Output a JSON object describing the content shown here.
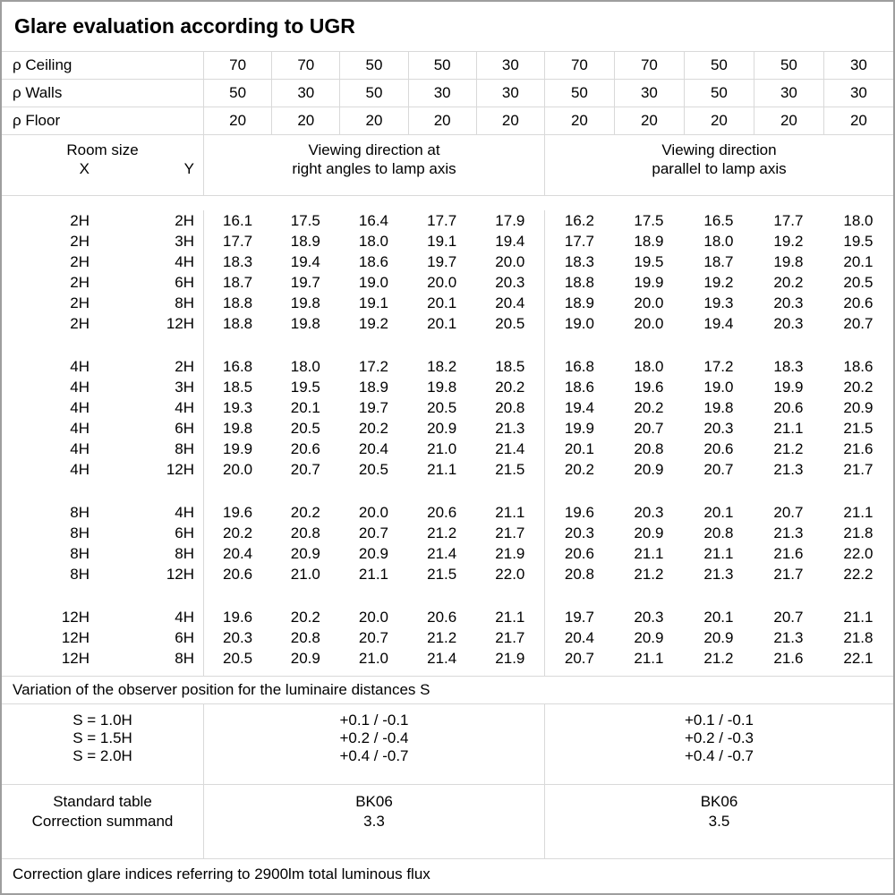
{
  "title": "Glare evaluation according to UGR",
  "colors": {
    "grid_line": "#d9d9d9",
    "outer_border": "#9e9e9e",
    "text": "#000000",
    "background": "#ffffff"
  },
  "reflectance_rows": [
    {
      "label": "ρ Ceiling",
      "values": [
        "70",
        "70",
        "50",
        "50",
        "30",
        "70",
        "70",
        "50",
        "50",
        "30"
      ]
    },
    {
      "label": "ρ Walls",
      "values": [
        "50",
        "30",
        "50",
        "30",
        "30",
        "50",
        "30",
        "50",
        "30",
        "30"
      ]
    },
    {
      "label": "ρ Floor",
      "values": [
        "20",
        "20",
        "20",
        "20",
        "20",
        "20",
        "20",
        "20",
        "20",
        "20"
      ]
    }
  ],
  "room_size_header": {
    "title": "Room size",
    "x": "X",
    "y": "Y"
  },
  "group_headers": {
    "left_line1": "Viewing direction at",
    "left_line2": "right angles to lamp axis",
    "right_line1": "Viewing direction",
    "right_line2": "parallel to lamp axis"
  },
  "blocks": [
    {
      "rows": [
        {
          "x": "2H",
          "y": "2H",
          "left": [
            "16.1",
            "17.5",
            "16.4",
            "17.7",
            "17.9"
          ],
          "right": [
            "16.2",
            "17.5",
            "16.5",
            "17.7",
            "18.0"
          ]
        },
        {
          "x": "2H",
          "y": "3H",
          "left": [
            "17.7",
            "18.9",
            "18.0",
            "19.1",
            "19.4"
          ],
          "right": [
            "17.7",
            "18.9",
            "18.0",
            "19.2",
            "19.5"
          ]
        },
        {
          "x": "2H",
          "y": "4H",
          "left": [
            "18.3",
            "19.4",
            "18.6",
            "19.7",
            "20.0"
          ],
          "right": [
            "18.3",
            "19.5",
            "18.7",
            "19.8",
            "20.1"
          ]
        },
        {
          "x": "2H",
          "y": "6H",
          "left": [
            "18.7",
            "19.7",
            "19.0",
            "20.0",
            "20.3"
          ],
          "right": [
            "18.8",
            "19.9",
            "19.2",
            "20.2",
            "20.5"
          ]
        },
        {
          "x": "2H",
          "y": "8H",
          "left": [
            "18.8",
            "19.8",
            "19.1",
            "20.1",
            "20.4"
          ],
          "right": [
            "18.9",
            "20.0",
            "19.3",
            "20.3",
            "20.6"
          ]
        },
        {
          "x": "2H",
          "y": "12H",
          "left": [
            "18.8",
            "19.8",
            "19.2",
            "20.1",
            "20.5"
          ],
          "right": [
            "19.0",
            "20.0",
            "19.4",
            "20.3",
            "20.7"
          ]
        }
      ]
    },
    {
      "rows": [
        {
          "x": "4H",
          "y": "2H",
          "left": [
            "16.8",
            "18.0",
            "17.2",
            "18.2",
            "18.5"
          ],
          "right": [
            "16.8",
            "18.0",
            "17.2",
            "18.3",
            "18.6"
          ]
        },
        {
          "x": "4H",
          "y": "3H",
          "left": [
            "18.5",
            "19.5",
            "18.9",
            "19.8",
            "20.2"
          ],
          "right": [
            "18.6",
            "19.6",
            "19.0",
            "19.9",
            "20.2"
          ]
        },
        {
          "x": "4H",
          "y": "4H",
          "left": [
            "19.3",
            "20.1",
            "19.7",
            "20.5",
            "20.8"
          ],
          "right": [
            "19.4",
            "20.2",
            "19.8",
            "20.6",
            "20.9"
          ]
        },
        {
          "x": "4H",
          "y": "6H",
          "left": [
            "19.8",
            "20.5",
            "20.2",
            "20.9",
            "21.3"
          ],
          "right": [
            "19.9",
            "20.7",
            "20.3",
            "21.1",
            "21.5"
          ]
        },
        {
          "x": "4H",
          "y": "8H",
          "left": [
            "19.9",
            "20.6",
            "20.4",
            "21.0",
            "21.4"
          ],
          "right": [
            "20.1",
            "20.8",
            "20.6",
            "21.2",
            "21.6"
          ]
        },
        {
          "x": "4H",
          "y": "12H",
          "left": [
            "20.0",
            "20.7",
            "20.5",
            "21.1",
            "21.5"
          ],
          "right": [
            "20.2",
            "20.9",
            "20.7",
            "21.3",
            "21.7"
          ]
        }
      ]
    },
    {
      "rows": [
        {
          "x": "8H",
          "y": "4H",
          "left": [
            "19.6",
            "20.2",
            "20.0",
            "20.6",
            "21.1"
          ],
          "right": [
            "19.6",
            "20.3",
            "20.1",
            "20.7",
            "21.1"
          ]
        },
        {
          "x": "8H",
          "y": "6H",
          "left": [
            "20.2",
            "20.8",
            "20.7",
            "21.2",
            "21.7"
          ],
          "right": [
            "20.3",
            "20.9",
            "20.8",
            "21.3",
            "21.8"
          ]
        },
        {
          "x": "8H",
          "y": "8H",
          "left": [
            "20.4",
            "20.9",
            "20.9",
            "21.4",
            "21.9"
          ],
          "right": [
            "20.6",
            "21.1",
            "21.1",
            "21.6",
            "22.0"
          ]
        },
        {
          "x": "8H",
          "y": "12H",
          "left": [
            "20.6",
            "21.0",
            "21.1",
            "21.5",
            "22.0"
          ],
          "right": [
            "20.8",
            "21.2",
            "21.3",
            "21.7",
            "22.2"
          ]
        }
      ]
    },
    {
      "rows": [
        {
          "x": "12H",
          "y": "4H",
          "left": [
            "19.6",
            "20.2",
            "20.0",
            "20.6",
            "21.1"
          ],
          "right": [
            "19.7",
            "20.3",
            "20.1",
            "20.7",
            "21.1"
          ]
        },
        {
          "x": "12H",
          "y": "6H",
          "left": [
            "20.3",
            "20.8",
            "20.7",
            "21.2",
            "21.7"
          ],
          "right": [
            "20.4",
            "20.9",
            "20.9",
            "21.3",
            "21.8"
          ]
        },
        {
          "x": "12H",
          "y": "8H",
          "left": [
            "20.5",
            "20.9",
            "21.0",
            "21.4",
            "21.9"
          ],
          "right": [
            "20.7",
            "21.1",
            "21.2",
            "21.6",
            "22.1"
          ]
        }
      ]
    }
  ],
  "variation_note": "Variation of the observer position for the luminaire distances S",
  "s_variation": {
    "rows": [
      {
        "label": "S = 1.0H",
        "left": "+0.1 / -0.1",
        "right": "+0.1 / -0.1"
      },
      {
        "label": "S = 1.5H",
        "left": "+0.2 / -0.4",
        "right": "+0.2 / -0.3"
      },
      {
        "label": "S = 2.0H",
        "left": "+0.4 / -0.7",
        "right": "+0.4 / -0.7"
      }
    ]
  },
  "standard": {
    "label1": "Standard table",
    "label2": "Correction summand",
    "left_table": "BK06",
    "left_summand": "3.3",
    "right_table": "BK06",
    "right_summand": "3.5"
  },
  "footer_note": "Correction glare indices referring to 2900lm total luminous flux"
}
